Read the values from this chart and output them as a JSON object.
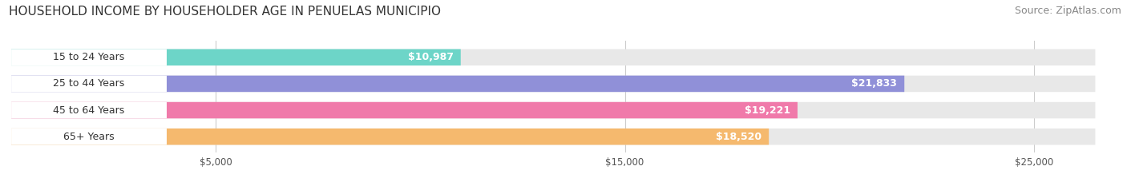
{
  "title": "HOUSEHOLD INCOME BY HOUSEHOLDER AGE IN PENUELAS MUNICIPIO",
  "source": "Source: ZipAtlas.com",
  "categories": [
    "15 to 24 Years",
    "25 to 44 Years",
    "45 to 64 Years",
    "65+ Years"
  ],
  "values": [
    10987,
    21833,
    19221,
    18520
  ],
  "bar_colors": [
    "#6dd5c8",
    "#9090d8",
    "#f07aaa",
    "#f5b96e"
  ],
  "bar_bg_color": "#e8e8e8",
  "value_labels": [
    "$10,987",
    "$21,833",
    "$19,221",
    "$18,520"
  ],
  "xlim": [
    0,
    27000
  ],
  "xticks": [
    5000,
    15000,
    25000
  ],
  "xticklabels": [
    "$5,000",
    "$15,000",
    "$25,000"
  ],
  "fig_bg_color": "#ffffff",
  "bar_bg_max": 26500,
  "title_fontsize": 11,
  "source_fontsize": 9
}
